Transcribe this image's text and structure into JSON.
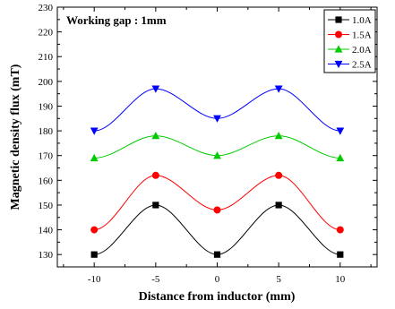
{
  "chart_data": {
    "type": "line",
    "title": "",
    "annotation": "Working gap : 1mm",
    "xlabel": "Distance from inductor (mm)",
    "ylabel": "Magnetic density flux (mT)",
    "xlim": [
      -13,
      13
    ],
    "ylim": [
      125,
      230
    ],
    "xticks": [
      -10,
      -5,
      0,
      5,
      10
    ],
    "yticks": [
      130,
      140,
      150,
      160,
      170,
      180,
      190,
      200,
      210,
      220,
      230
    ],
    "grid": false,
    "legend_position": "top-right",
    "x": [
      -10,
      -5,
      0,
      5,
      10
    ],
    "series": [
      {
        "name": "1.0A",
        "color": "#000000",
        "marker": "square",
        "values": [
          130,
          150,
          130,
          150,
          130
        ]
      },
      {
        "name": "1.5A",
        "color": "#ff0000",
        "marker": "circle",
        "values": [
          140,
          162,
          148,
          162,
          140
        ]
      },
      {
        "name": "2.0A",
        "color": "#00cc00",
        "marker": "triangle-up",
        "values": [
          169,
          178,
          170,
          178,
          169
        ]
      },
      {
        "name": "2.5A",
        "color": "#0000ff",
        "marker": "triangle-down",
        "values": [
          180,
          197,
          185,
          197,
          180
        ]
      }
    ]
  }
}
